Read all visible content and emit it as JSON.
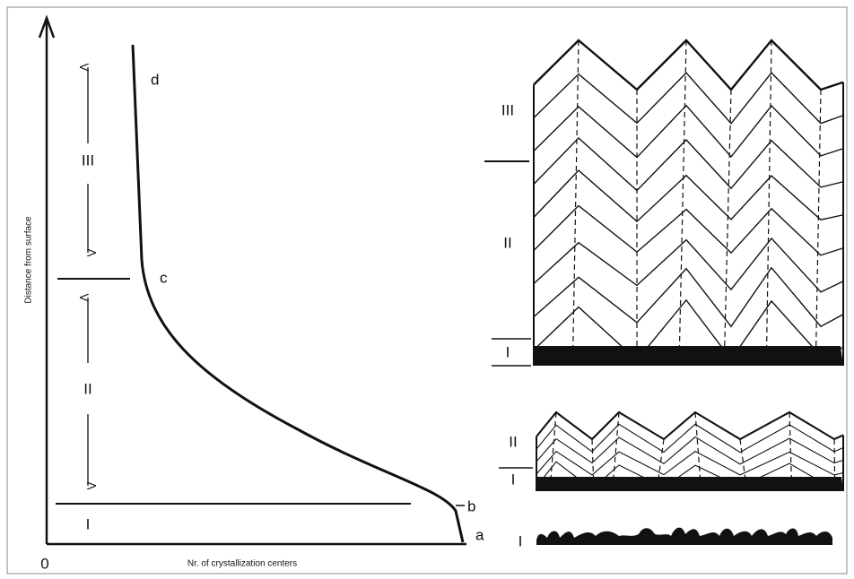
{
  "axes": {
    "y_label": "Distance from surface",
    "x_label": "Nr. of crystallization centers",
    "origin": "0"
  },
  "curve_points": [
    {
      "label": "a"
    },
    {
      "label": "b"
    },
    {
      "label": "c"
    },
    {
      "label": "d"
    }
  ],
  "zones": [
    {
      "label": "I"
    },
    {
      "label": "II"
    },
    {
      "label": "III"
    }
  ],
  "panels": [
    {
      "labels": [
        "III",
        "II",
        "I"
      ]
    },
    {
      "labels": [
        "II",
        "I"
      ]
    },
    {
      "labels": [
        "I"
      ]
    }
  ]
}
